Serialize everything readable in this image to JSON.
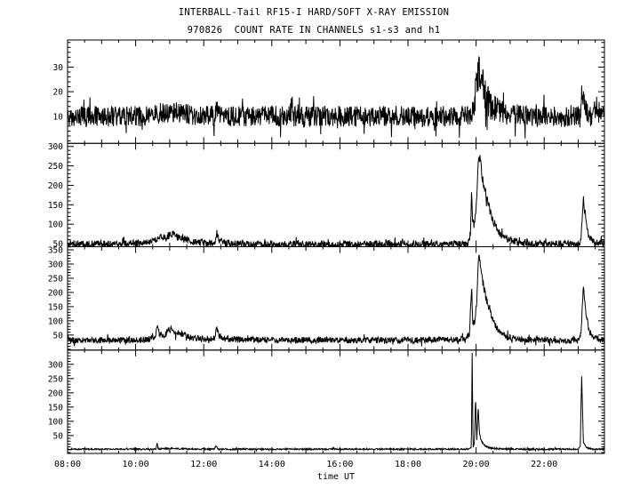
{
  "figure": {
    "background": "#ffffff",
    "line_color": "#000000",
    "axis_color": "#000000"
  },
  "chart_data": {
    "type": "line",
    "title": "INTERBALL-Tail RF15-I HARD/SOFT X-RAY EMISSION",
    "subtitle": "970826  COUNT RATE IN CHANNELS s1-s3 and h1",
    "xlabel": "time UT",
    "x_range": [
      8.0,
      23.77
    ],
    "x_major_ticks": [
      {
        "hour": 8,
        "label": "08:00"
      },
      {
        "hour": 10,
        "label": "10:00"
      },
      {
        "hour": 12,
        "label": "12:00"
      },
      {
        "hour": 14,
        "label": "14:00"
      },
      {
        "hour": 16,
        "label": "16:00"
      },
      {
        "hour": 18,
        "label": "18:00"
      },
      {
        "hour": 20,
        "label": "20:00"
      },
      {
        "hour": 22,
        "label": "22:00"
      }
    ],
    "x_minor_tick_interval_hours": 0.5,
    "grid": false,
    "legend": "none",
    "panels": [
      {
        "name": "panel-1",
        "ylim": [
          -1,
          41
        ],
        "y_major_ticks": [
          10,
          20,
          30
        ],
        "y_minor_tick_interval": 2,
        "noise_halfwidth_keypoints": [
          [
            8,
            4.2
          ],
          [
            19.85,
            4.2
          ],
          [
            19.95,
            5.5
          ],
          [
            20.05,
            8
          ],
          [
            20.2,
            8
          ],
          [
            20.45,
            6
          ],
          [
            20.8,
            4.5
          ],
          [
            23.0,
            4.2
          ],
          [
            23.12,
            6
          ],
          [
            23.3,
            4.2
          ],
          [
            23.77,
            4.2
          ]
        ],
        "profile_keypoints": [
          [
            8,
            10
          ],
          [
            10.2,
            10
          ],
          [
            10.7,
            11
          ],
          [
            11.05,
            12
          ],
          [
            11.4,
            11
          ],
          [
            12.0,
            10
          ],
          [
            12.33,
            10
          ],
          [
            12.38,
            14
          ],
          [
            12.43,
            10
          ],
          [
            14,
            10
          ],
          [
            19.8,
            10
          ],
          [
            19.9,
            12
          ],
          [
            19.95,
            16
          ],
          [
            20.0,
            21
          ],
          [
            20.07,
            28
          ],
          [
            20.15,
            26
          ],
          [
            20.25,
            19
          ],
          [
            20.4,
            15
          ],
          [
            20.6,
            12.5
          ],
          [
            20.9,
            11
          ],
          [
            21.3,
            10
          ],
          [
            22.9,
            10
          ],
          [
            23.05,
            11
          ],
          [
            23.12,
            20
          ],
          [
            23.18,
            14
          ],
          [
            23.35,
            10
          ],
          [
            23.77,
            10
          ]
        ]
      },
      {
        "name": "panel-2",
        "ylim": [
          42,
          308
        ],
        "y_major_ticks": [
          50,
          100,
          150,
          200,
          250,
          300
        ],
        "y_minor_tick_interval": 10,
        "noise_halfwidth_keypoints": [
          [
            8,
            9
          ],
          [
            19.8,
            9
          ],
          [
            19.9,
            13
          ],
          [
            20.3,
            13
          ],
          [
            20.6,
            10
          ],
          [
            21.0,
            9
          ],
          [
            23.77,
            9
          ]
        ],
        "profile_keypoints": [
          [
            8,
            50
          ],
          [
            9.5,
            49
          ],
          [
            10.3,
            52
          ],
          [
            10.6,
            62
          ],
          [
            10.75,
            68
          ],
          [
            10.9,
            62
          ],
          [
            11.0,
            72
          ],
          [
            11.1,
            75
          ],
          [
            11.25,
            65
          ],
          [
            11.4,
            62
          ],
          [
            11.55,
            58
          ],
          [
            11.75,
            54
          ],
          [
            12.1,
            51
          ],
          [
            12.33,
            52
          ],
          [
            12.38,
            78
          ],
          [
            12.45,
            60
          ],
          [
            12.6,
            52
          ],
          [
            13.0,
            49
          ],
          [
            14.0,
            48
          ],
          [
            16.0,
            48
          ],
          [
            18.0,
            49
          ],
          [
            19.3,
            49
          ],
          [
            19.75,
            50
          ],
          [
            19.83,
            62
          ],
          [
            19.87,
            195
          ],
          [
            19.9,
            105
          ],
          [
            19.95,
            98
          ],
          [
            20.02,
            170
          ],
          [
            20.08,
            288
          ],
          [
            20.12,
            262
          ],
          [
            20.2,
            210
          ],
          [
            20.3,
            172
          ],
          [
            20.42,
            132
          ],
          [
            20.55,
            98
          ],
          [
            20.7,
            75
          ],
          [
            20.9,
            62
          ],
          [
            21.2,
            54
          ],
          [
            21.8,
            49
          ],
          [
            22.5,
            49
          ],
          [
            23.0,
            48
          ],
          [
            23.08,
            58
          ],
          [
            23.15,
            168
          ],
          [
            23.2,
            122
          ],
          [
            23.3,
            68
          ],
          [
            23.45,
            54
          ],
          [
            23.77,
            49
          ]
        ]
      },
      {
        "name": "panel-3",
        "ylim": [
          -3,
          361
        ],
        "y_major_ticks": [
          50,
          100,
          150,
          200,
          250,
          300,
          350
        ],
        "y_minor_tick_interval": 10,
        "noise_halfwidth_keypoints": [
          [
            8,
            11
          ],
          [
            19.8,
            11
          ],
          [
            19.9,
            14
          ],
          [
            20.3,
            14
          ],
          [
            20.6,
            11
          ],
          [
            21.0,
            11
          ],
          [
            23.77,
            11
          ]
        ],
        "profile_keypoints": [
          [
            8,
            32
          ],
          [
            9.0,
            31
          ],
          [
            10.3,
            33
          ],
          [
            10.58,
            45
          ],
          [
            10.63,
            80
          ],
          [
            10.7,
            52
          ],
          [
            10.85,
            48
          ],
          [
            10.95,
            66
          ],
          [
            11.05,
            68
          ],
          [
            11.2,
            52
          ],
          [
            11.35,
            56
          ],
          [
            11.5,
            46
          ],
          [
            11.7,
            40
          ],
          [
            12.0,
            36
          ],
          [
            12.33,
            38
          ],
          [
            12.38,
            74
          ],
          [
            12.45,
            48
          ],
          [
            12.6,
            38
          ],
          [
            13.0,
            34
          ],
          [
            15,
            32
          ],
          [
            18,
            32
          ],
          [
            19.4,
            34
          ],
          [
            19.7,
            36
          ],
          [
            19.8,
            50
          ],
          [
            19.87,
            230
          ],
          [
            19.9,
            98
          ],
          [
            19.95,
            92
          ],
          [
            20.02,
            160
          ],
          [
            20.08,
            345
          ],
          [
            20.13,
            300
          ],
          [
            20.2,
            235
          ],
          [
            20.3,
            175
          ],
          [
            20.42,
            125
          ],
          [
            20.55,
            88
          ],
          [
            20.7,
            60
          ],
          [
            20.9,
            44
          ],
          [
            21.2,
            36
          ],
          [
            22,
            31
          ],
          [
            23.0,
            30
          ],
          [
            23.08,
            50
          ],
          [
            23.15,
            222
          ],
          [
            23.22,
            132
          ],
          [
            23.32,
            62
          ],
          [
            23.5,
            38
          ],
          [
            23.77,
            32
          ]
        ]
      },
      {
        "name": "panel-4",
        "ylim": [
          -13,
          350
        ],
        "y_major_ticks": [
          50,
          100,
          150,
          200,
          250,
          300
        ],
        "y_minor_tick_interval": 10,
        "noise_halfwidth_keypoints": [
          [
            8,
            2.5
          ],
          [
            19.8,
            2.5
          ],
          [
            20.3,
            3
          ],
          [
            23.0,
            2.5
          ],
          [
            23.77,
            2.5
          ]
        ],
        "profile_keypoints": [
          [
            8,
            2
          ],
          [
            10.5,
            2
          ],
          [
            10.6,
            3
          ],
          [
            10.63,
            27
          ],
          [
            10.66,
            3
          ],
          [
            11.0,
            4
          ],
          [
            11.15,
            5
          ],
          [
            11.3,
            3
          ],
          [
            12.3,
            2
          ],
          [
            12.37,
            13
          ],
          [
            12.42,
            2
          ],
          [
            14,
            2
          ],
          [
            19.7,
            2
          ],
          [
            19.82,
            4
          ],
          [
            19.86,
            8
          ],
          [
            19.885,
            342
          ],
          [
            19.91,
            8
          ],
          [
            19.95,
            20
          ],
          [
            19.985,
            188
          ],
          [
            20.02,
            30
          ],
          [
            20.06,
            152
          ],
          [
            20.1,
            55
          ],
          [
            20.16,
            30
          ],
          [
            20.25,
            15
          ],
          [
            20.4,
            6
          ],
          [
            20.7,
            3
          ],
          [
            21.5,
            2
          ],
          [
            23.0,
            2
          ],
          [
            23.06,
            15
          ],
          [
            23.1,
            265
          ],
          [
            23.15,
            28
          ],
          [
            23.25,
            6
          ],
          [
            23.4,
            2
          ],
          [
            23.77,
            2
          ]
        ]
      }
    ]
  }
}
